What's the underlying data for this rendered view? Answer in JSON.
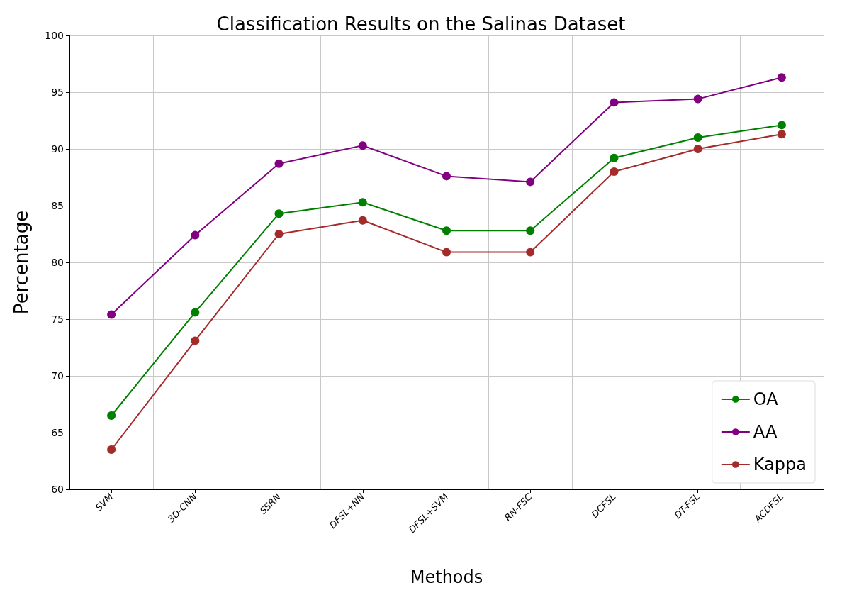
{
  "chart_data": {
    "type": "line",
    "title": "Classification Results on the Salinas Dataset",
    "xlabel": "Methods",
    "ylabel": "Percentage",
    "categories": [
      "SVM",
      "3D-CNN",
      "SSRN",
      "DFSL+NN",
      "DFSL+SVM",
      "RN-FSC",
      "DCFSL",
      "DT-FSL",
      "ACDFSL"
    ],
    "series": [
      {
        "name": "OA",
        "color": "#008000",
        "values": [
          66.5,
          75.6,
          84.3,
          85.3,
          82.8,
          82.8,
          89.2,
          91.0,
          92.1
        ]
      },
      {
        "name": "AA",
        "color": "#800080",
        "values": [
          75.4,
          82.4,
          88.7,
          90.3,
          87.6,
          87.1,
          94.1,
          94.4,
          96.3
        ]
      },
      {
        "name": "Kappa",
        "color": "#a52a2a",
        "values": [
          63.5,
          73.1,
          82.5,
          83.7,
          80.9,
          80.9,
          88.0,
          90.0,
          91.3
        ]
      }
    ],
    "ylim": [
      60,
      100
    ],
    "yticks": [
      60,
      65,
      70,
      75,
      80,
      85,
      90,
      95,
      100
    ],
    "grid": true,
    "legend": "bottom right",
    "marker": "circle",
    "line_style": "solid"
  }
}
